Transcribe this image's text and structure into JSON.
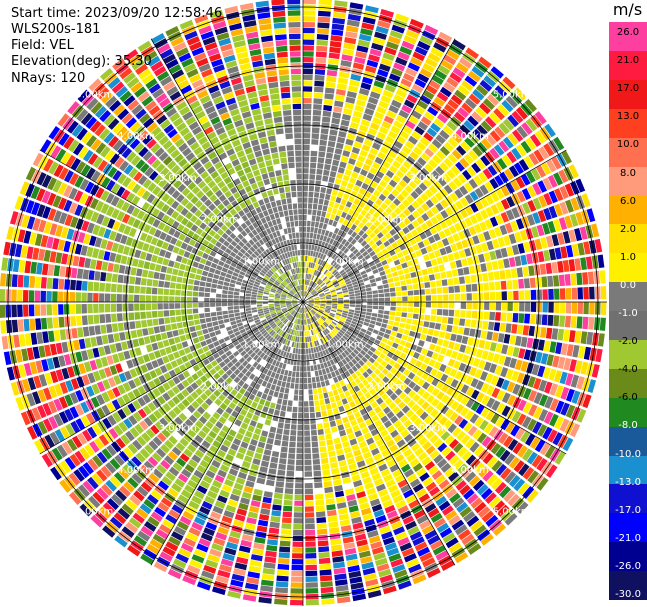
{
  "info": {
    "start_time": "Start time: 2023/09/20 12:58:46",
    "instrument": "WLS200s-181",
    "field": "Field: VEL",
    "elevation": "Elevation(deg): 35.30",
    "nrays": "NRays: 120"
  },
  "colorbar": {
    "unit": "m/s",
    "ticks": [
      "26.0",
      "21.0",
      "17.0",
      "13.0",
      "10.0",
      "8.0",
      "6.0",
      "2.0",
      "1.0",
      "0.0",
      "-1.0",
      "-2.0",
      "-4.0",
      "-6.0",
      "-8.0",
      "-10.0",
      "-13.0",
      "-17.0",
      "-21.0",
      "-26.0",
      "-30.0"
    ],
    "colors": [
      "#ff3fa0",
      "#ff1a40",
      "#f01818",
      "#ff4020",
      "#ff7050",
      "#ff9a7a",
      "#ffb000",
      "#ffe000",
      "#fff000",
      "#7a7a7a",
      "#707070",
      "#a0c830",
      "#6a8a1a",
      "#208a20",
      "#1a5a9a",
      "#1a90d0",
      "#1010d0",
      "#0000ff",
      "#000090",
      "#101060"
    ]
  },
  "chart_data": {
    "type": "heatmap",
    "projection": "polar PPI",
    "field": "VEL",
    "units": "m/s",
    "nrays": 120,
    "range_ring_labels": [
      "1.00km",
      "2.00km",
      "3.00km",
      "4.00km",
      "5.00km"
    ],
    "colorbar_range": [
      -30.0,
      26.0
    ],
    "pattern": {
      "inner_range_km": 3.0,
      "inner_description": "mostly near-zero (grey) velocities, positive yellow 1-2 m/s on the north-east side, negative green -2 to -4 m/s on the south-west side",
      "outer_description": "noisy random velocities beyond about 3.5 km"
    }
  }
}
